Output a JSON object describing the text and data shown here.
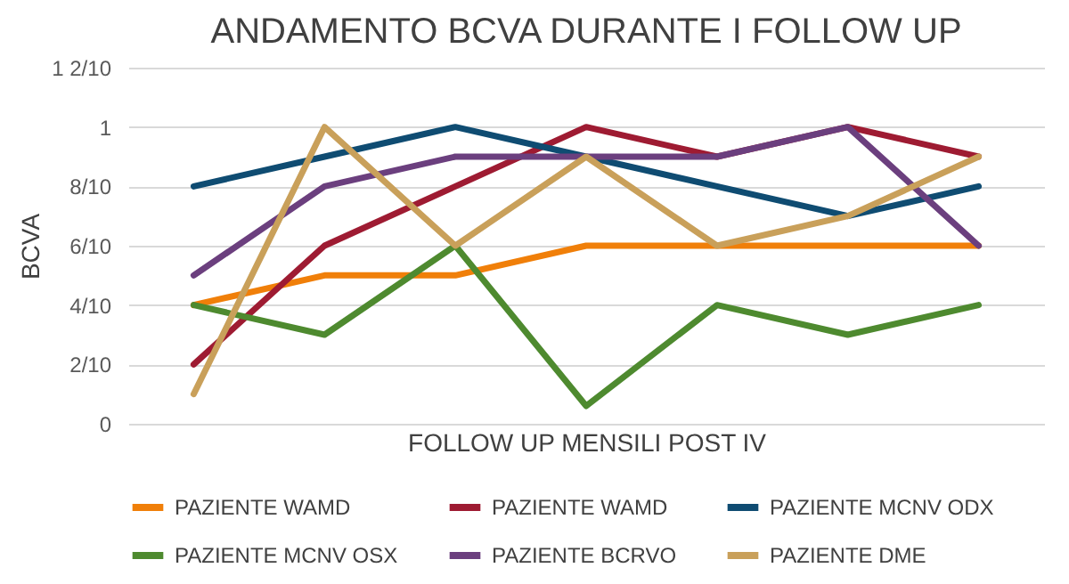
{
  "chart_data": {
    "type": "line",
    "title": "ANDAMENTO BCVA DURANTE I FOLLOW UP",
    "xlabel": "FOLLOW UP MENSILI POST IV",
    "ylabel": "BCVA",
    "categories": [
      null,
      null,
      null,
      null,
      null,
      null,
      null
    ],
    "series": [
      {
        "name": "PAZIENTE WAMD",
        "color": "#f07f09",
        "values": [
          0.4,
          0.5,
          0.5,
          0.6,
          0.6,
          0.6,
          0.6
        ]
      },
      {
        "name": "PAZIENTE WAMD",
        "color": "#9e1b32",
        "values": [
          0.2,
          0.6,
          0.8,
          1.0,
          0.9,
          1.0,
          0.9
        ]
      },
      {
        "name": "PAZIENTE MCNV ODX",
        "color": "#0f4c72",
        "values": [
          0.8,
          0.9,
          1.0,
          0.9,
          0.8,
          0.7,
          0.8
        ]
      },
      {
        "name": "PAZIENTE MCNV OSX",
        "color": "#4e8a2f",
        "values": [
          0.4,
          0.3,
          0.6,
          0.06,
          0.4,
          0.3,
          0.4
        ]
      },
      {
        "name": "PAZIENTE BCRVO",
        "color": "#6b3f7e",
        "values": [
          0.5,
          0.8,
          0.9,
          0.9,
          0.9,
          1.0,
          0.6
        ]
      },
      {
        "name": "PAZIENTE DME",
        "color": "#c9a05a",
        "values": [
          0.1,
          1.0,
          0.6,
          0.9,
          0.6,
          0.7,
          0.9
        ]
      }
    ],
    "ylim": [
      0,
      1.2
    ],
    "yticks": [
      0,
      {
        "value": 0.2,
        "label": "2/10"
      },
      {
        "value": 0.4,
        "label": "4/10"
      },
      {
        "value": 0.6,
        "label": "6/10"
      },
      {
        "value": 0.8,
        "label": "8/10"
      },
      1,
      {
        "value": 1.2,
        "label": "1 2/10"
      }
    ],
    "grid": "y",
    "legend": "bottom",
    "line_style": "solid",
    "marker": "none",
    "tick_labels": "y"
  }
}
